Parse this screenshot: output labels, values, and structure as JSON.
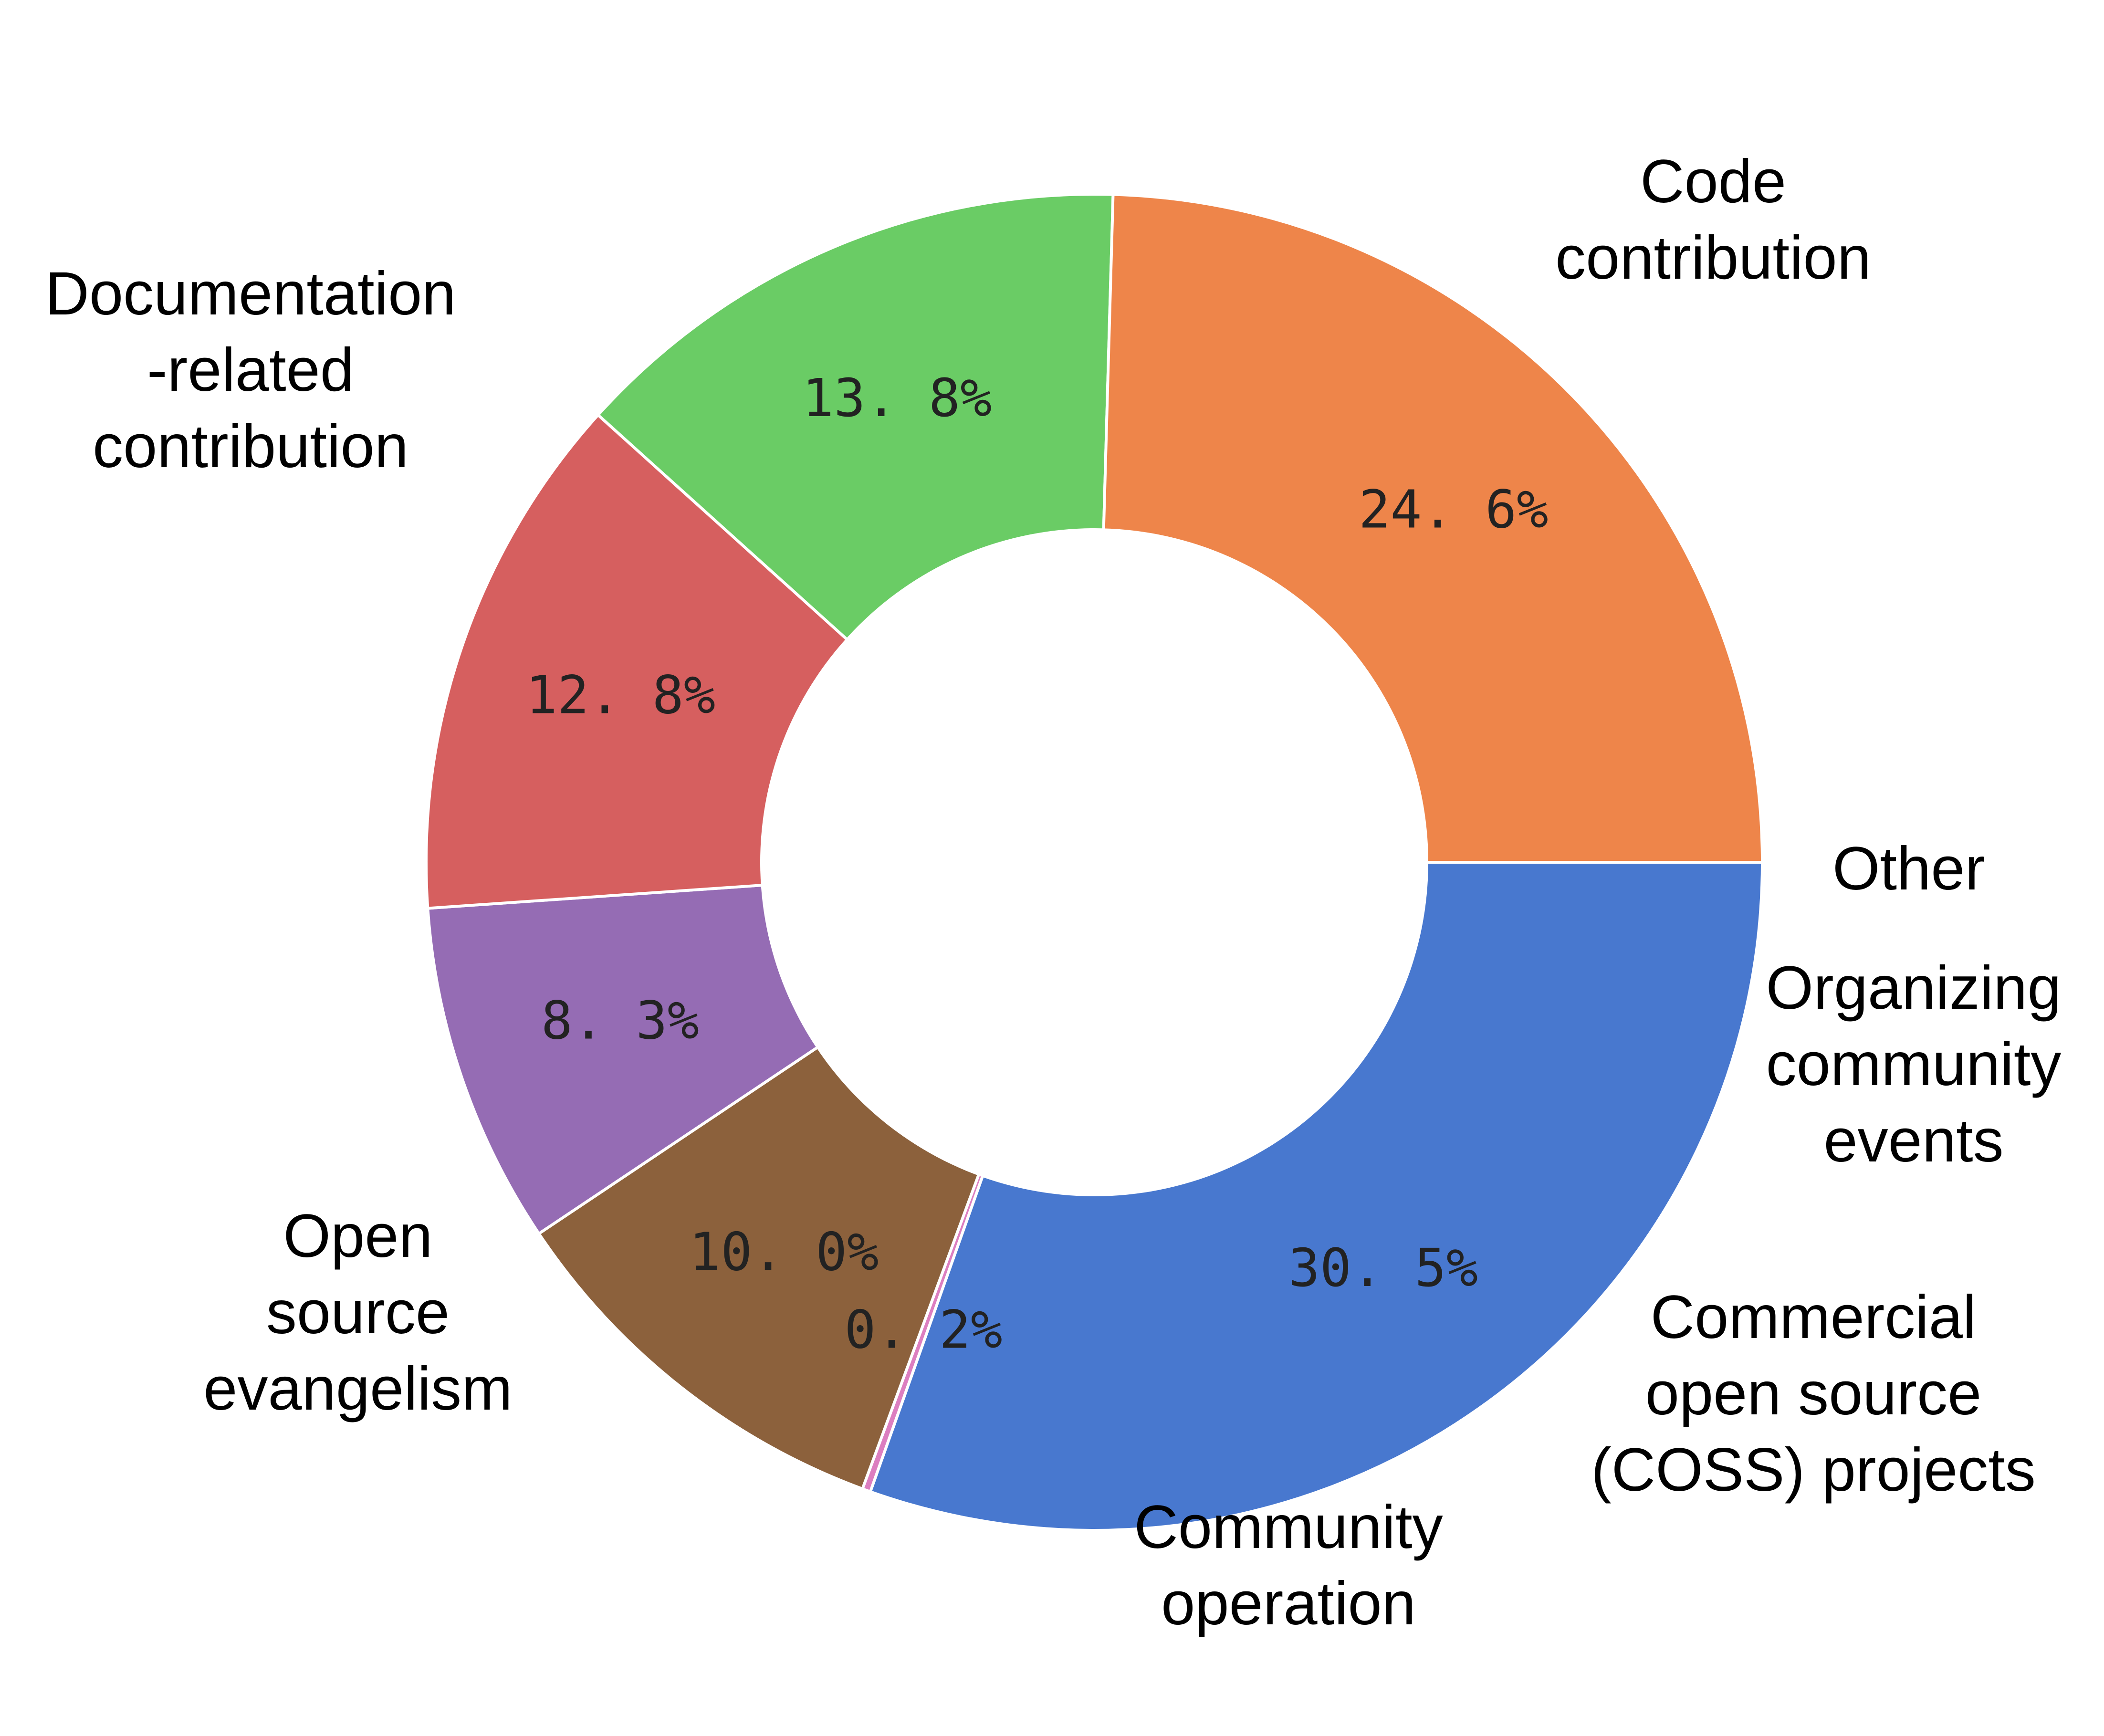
{
  "chart_data": {
    "type": "pie",
    "donut": true,
    "categories": [
      "Code contribution",
      "Other",
      "Organizing community events",
      "Commercial open source (COSS) projects",
      "Community operation",
      "Open source evangelism",
      "Documentation -related contribution"
    ],
    "label_lines": [
      [
        "Code",
        "contribution"
      ],
      [
        "Other"
      ],
      [
        "Organizing",
        "community",
        "events"
      ],
      [
        "Commercial",
        "open source",
        "(COSS) projects"
      ],
      [
        "Community",
        "operation"
      ],
      [
        "Open",
        "source",
        "evangelism"
      ],
      [
        "Documentation",
        "-related",
        "contribution"
      ]
    ],
    "values": [
      30.5,
      0.2,
      10.0,
      8.3,
      12.8,
      13.8,
      24.6
    ],
    "value_labels": [
      "30. 5%",
      "0. 2%",
      "10. 0%",
      "8. 3%",
      "12. 8%",
      "13. 8%",
      "24. 6%"
    ],
    "colors": [
      "#4878cf",
      "#dc7ec0",
      "#8c613c",
      "#956cb4",
      "#d65f5f",
      "#6acc65",
      "#ee854a"
    ],
    "start_angle_deg": 0,
    "direction": "clockwise",
    "legend": "none"
  }
}
